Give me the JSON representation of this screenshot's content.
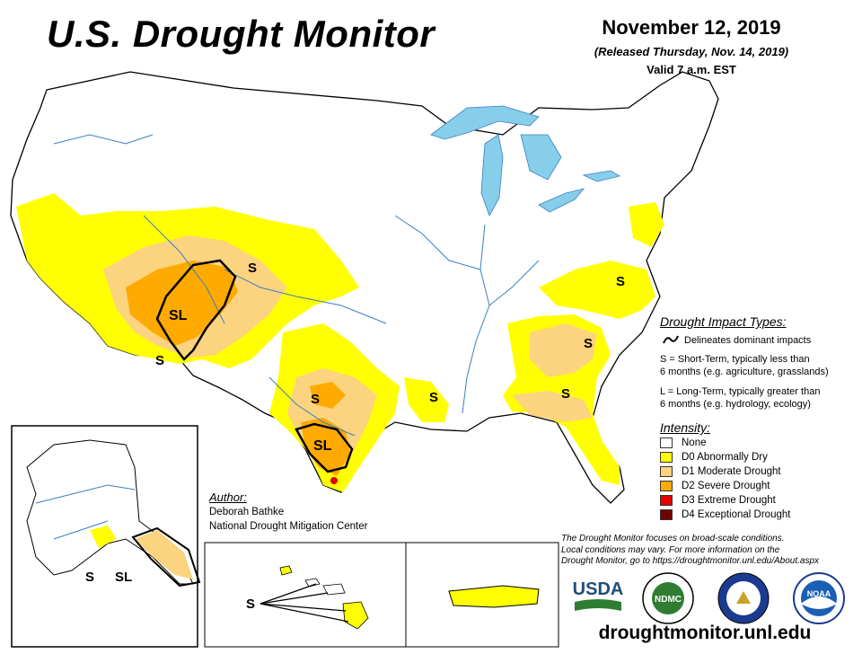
{
  "header": {
    "title": "U.S. Drought Monitor",
    "date": "November 12, 2019",
    "released": "(Released Thursday, Nov. 14, 2019)",
    "valid": "Valid 7 a.m. EST"
  },
  "impact_types": {
    "heading": "Drought Impact Types:",
    "delineates": "Delineates dominant impacts",
    "short_term_line1": "S = Short-Term, typically less than",
    "short_term_line2": "6 months (e.g. agriculture, grasslands)",
    "long_term_line1": "L = Long-Term, typically greater than",
    "long_term_line2": "6 months (e.g. hydrology, ecology)"
  },
  "intensity": {
    "heading": "Intensity:",
    "levels": [
      {
        "label": "None",
        "color": "#ffffff"
      },
      {
        "label": "D0 Abnormally Dry",
        "color": "#ffff00"
      },
      {
        "label": "D1 Moderate Drought",
        "color": "#fcd37f"
      },
      {
        "label": "D2 Severe Drought",
        "color": "#ffaa00"
      },
      {
        "label": "D3 Extreme Drought",
        "color": "#e60000"
      },
      {
        "label": "D4 Exceptional Drought",
        "color": "#730000"
      }
    ]
  },
  "author": {
    "heading": "Author:",
    "name": "Deborah Bathke",
    "org": "National Drought Mitigation Center"
  },
  "note": {
    "line1": "The Drought Monitor focuses on broad-scale conditions.",
    "line2": "Local conditions may vary. For more information on the",
    "line3": "Drought Monitor, go to https://droughtmonitor.unl.edu/About.aspx"
  },
  "map_labels": {
    "s_colorado": "S",
    "sl_southwest": "SL",
    "s_arizona": "S",
    "s_texas_north": "S",
    "sl_texas": "SL",
    "s_louisiana": "S",
    "s_virginia": "S",
    "s_carolinas": "S",
    "s_georgia": "S",
    "s_alaska": "S",
    "sl_alaska": "SL",
    "s_hawaii": "S"
  },
  "logos": {
    "usda": "USDA",
    "ndmc": "NDMC",
    "noaa": "NOAA"
  },
  "url": "droughtmonitor.unl.edu"
}
